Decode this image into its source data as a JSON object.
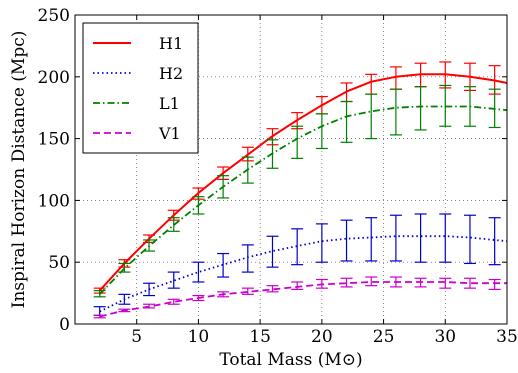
{
  "chart_data": {
    "type": "line",
    "xlabel": "Total Mass (M⊙)",
    "ylabel": "Inspiral Horizon Distance (Mpc)",
    "xlim": [
      0,
      35
    ],
    "ylim": [
      0,
      250
    ],
    "xticks": [
      5,
      10,
      15,
      20,
      25,
      30,
      35
    ],
    "yticks": [
      0,
      50,
      100,
      150,
      200,
      250
    ],
    "xtick_labels": [
      "5",
      "10",
      "15",
      "20",
      "25",
      "30",
      "35"
    ],
    "ytick_labels": [
      "0",
      "50",
      "100",
      "150",
      "200",
      "250"
    ],
    "grid": true,
    "legend_position": "top-left",
    "curve_x": [
      2,
      4,
      6,
      8,
      10,
      12,
      14,
      16,
      18,
      20,
      22,
      24,
      26,
      28,
      30,
      32,
      34,
      35
    ],
    "errorbar_x": [
      2,
      4,
      6,
      8,
      10,
      12,
      14,
      16,
      18,
      20,
      22,
      24,
      26,
      28,
      30,
      32,
      34
    ],
    "series": [
      {
        "name": "H1",
        "color": "#ff0000",
        "style": "solid",
        "values": [
          27,
          49,
          69,
          88,
          106,
          122,
          137,
          152,
          165,
          177,
          188,
          196,
          200,
          202,
          202,
          200,
          197,
          195
        ],
        "err_low": [
          25,
          46,
          66,
          84,
          101,
          117,
          132,
          145,
          158,
          170,
          180,
          186,
          190,
          192,
          191,
          189,
          186
        ],
        "err_high": [
          29,
          52,
          72,
          92,
          110,
          127,
          143,
          158,
          171,
          184,
          195,
          202,
          208,
          211,
          212,
          211,
          209
        ]
      },
      {
        "name": "H2",
        "color": "#0000cc",
        "style": "dotted",
        "values": [
          10,
          20,
          28,
          35,
          42,
          48,
          54,
          59,
          63,
          67,
          69,
          70,
          71,
          71,
          71,
          70,
          68,
          67
        ],
        "err_low": [
          7,
          16,
          23,
          29,
          34,
          38,
          42,
          46,
          48,
          50,
          51,
          51,
          51,
          50,
          50,
          49,
          48
        ],
        "err_high": [
          14,
          24,
          33,
          42,
          50,
          57,
          64,
          71,
          77,
          81,
          84,
          86,
          88,
          89,
          89,
          88,
          86
        ]
      },
      {
        "name": "L1",
        "color": "#008000",
        "style": "dashdot",
        "values": [
          24,
          45,
          63,
          80,
          96,
          111,
          125,
          138,
          150,
          160,
          168,
          172,
          175,
          176,
          176,
          176,
          174,
          173
        ],
        "err_low": [
          22,
          42,
          59,
          75,
          89,
          102,
          114,
          126,
          134,
          142,
          147,
          150,
          153,
          157,
          160,
          160,
          159
        ],
        "err_high": [
          27,
          49,
          68,
          86,
          103,
          120,
          135,
          149,
          160,
          170,
          180,
          186,
          190,
          192,
          193,
          192,
          190
        ]
      },
      {
        "name": "V1",
        "color": "#cc00cc",
        "style": "dashed",
        "values": [
          6,
          11,
          14,
          18,
          21,
          24,
          26,
          28,
          30,
          32,
          33,
          34,
          34,
          34,
          34,
          33,
          33,
          33
        ],
        "err_low": [
          5,
          10,
          13,
          16,
          19,
          22,
          24,
          26,
          28,
          29,
          30,
          31,
          30,
          30,
          29,
          29,
          28
        ],
        "err_high": [
          7,
          12,
          16,
          20,
          23,
          26,
          29,
          31,
          34,
          36,
          37,
          38,
          38,
          37,
          37,
          37,
          36
        ]
      }
    ]
  }
}
